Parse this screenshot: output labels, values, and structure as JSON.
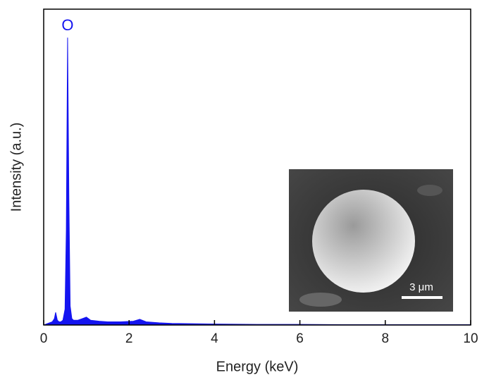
{
  "chart_data": {
    "type": "area",
    "x_label": "Energy (keV)",
    "y_label": "Intensity (a.u.)",
    "peak_label": "O",
    "x": [
      0,
      0.1,
      0.2,
      0.25,
      0.28,
      0.32,
      0.36,
      0.4,
      0.45,
      0.5,
      0.53,
      0.56,
      0.59,
      0.62,
      0.66,
      0.7,
      0.8,
      0.9,
      1.0,
      1.1,
      1.3,
      1.5,
      1.8,
      2.1,
      2.25,
      2.4,
      2.7,
      3.0,
      4,
      5,
      6,
      7,
      8,
      9,
      10
    ],
    "values": [
      0,
      0.5,
      1,
      2,
      4,
      1.5,
      1,
      1,
      1.5,
      5,
      30,
      91,
      40,
      6,
      2,
      1.5,
      1.5,
      2,
      2.5,
      1.5,
      1.2,
      1,
      1,
      1.2,
      1.8,
      1,
      0.7,
      0.5,
      0.3,
      0.2,
      0.2,
      0.1,
      0.1,
      0.1,
      0.1
    ],
    "color": "#1414f0",
    "xlim": [
      0,
      10
    ],
    "xticks": [
      0,
      2,
      4,
      6,
      8,
      10
    ],
    "ylim": [
      0,
      100
    ],
    "inset": {
      "scale_bar": "3 μm"
    }
  }
}
